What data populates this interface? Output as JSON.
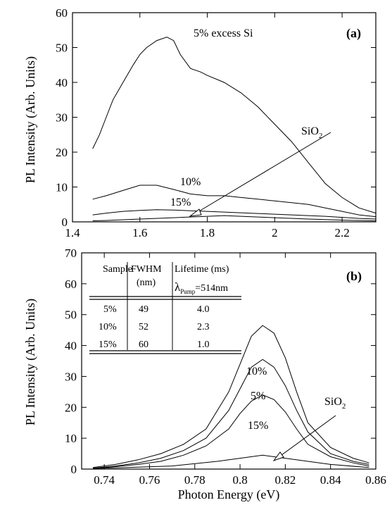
{
  "chart_data": [
    {
      "type": "line",
      "panel": "(a)",
      "xlabel": "",
      "ylabel": "PL Intensity (Arb. Units)",
      "xlim": [
        1.4,
        2.3
      ],
      "ylim": [
        0,
        60
      ],
      "x_ticks": [
        "1.4",
        "1.6",
        "1.8",
        "2",
        "2.2"
      ],
      "x_tick_values": [
        1.4,
        1.6,
        1.8,
        2.0,
        2.2
      ],
      "y_ticks": [
        "0",
        "10",
        "20",
        "30",
        "40",
        "50",
        "60"
      ],
      "y_tick_values": [
        0,
        10,
        20,
        30,
        40,
        50,
        60
      ],
      "series": [
        {
          "name": "5% excess Si",
          "x": [
            1.46,
            1.48,
            1.5,
            1.52,
            1.55,
            1.58,
            1.6,
            1.62,
            1.65,
            1.68,
            1.7,
            1.72,
            1.75,
            1.78,
            1.8,
            1.85,
            1.9,
            1.95,
            2.0,
            2.05,
            2.1,
            2.15,
            2.2,
            2.25,
            2.3
          ],
          "y": [
            21,
            25,
            30,
            35,
            40,
            45,
            48,
            50,
            52,
            53,
            52,
            48,
            44,
            43,
            42,
            40,
            37,
            33,
            28,
            23,
            17,
            11,
            7,
            4,
            2.5
          ]
        },
        {
          "name": "10%",
          "x": [
            1.46,
            1.5,
            1.55,
            1.6,
            1.65,
            1.7,
            1.75,
            1.8,
            1.85,
            1.9,
            1.95,
            2.0,
            2.05,
            2.1,
            2.15,
            2.2,
            2.25,
            2.3
          ],
          "y": [
            6.5,
            7.5,
            9,
            10.5,
            10.5,
            9.3,
            8,
            7.5,
            7.5,
            7,
            6.5,
            6,
            5.5,
            5,
            4,
            3,
            2,
            1.5
          ]
        },
        {
          "name": "15%",
          "x": [
            1.46,
            1.5,
            1.55,
            1.6,
            1.65,
            1.7,
            1.75,
            1.8,
            1.85,
            1.9,
            1.95,
            2.0,
            2.05,
            2.1,
            2.15,
            2.2,
            2.25,
            2.3
          ],
          "y": [
            2,
            2.5,
            3,
            3.3,
            3.5,
            3.4,
            3.2,
            3,
            2.8,
            2.6,
            2.4,
            2.2,
            2,
            1.8,
            1.6,
            1.3,
            1,
            0.8
          ]
        },
        {
          "name": "SiO2",
          "x": [
            1.46,
            1.5,
            1.6,
            1.7,
            1.8,
            1.85,
            1.9,
            2.0,
            2.1,
            2.2,
            2.3
          ],
          "y": [
            0.3,
            0.4,
            0.8,
            1.2,
            1.6,
            1.8,
            1.6,
            1.2,
            0.8,
            0.5,
            0.3
          ]
        }
      ],
      "annotations": [
        "5% excess Si",
        "10%",
        "15%",
        "SiO"
      ],
      "annotation_subscript": "2"
    },
    {
      "type": "line",
      "panel": "(b)",
      "xlabel": "Photon Energy (eV)",
      "ylabel": "PL Intensity (Arb. Units)",
      "xlim": [
        0.73,
        0.86
      ],
      "ylim": [
        0,
        70
      ],
      "x_ticks": [
        "0.74",
        "0.76",
        "0.78",
        "0.8",
        "0.82",
        "0.84",
        "0.86"
      ],
      "x_tick_values": [
        0.74,
        0.76,
        0.78,
        0.8,
        0.82,
        0.84,
        0.86
      ],
      "y_ticks": [
        "0",
        "10",
        "20",
        "30",
        "40",
        "50",
        "60",
        "70"
      ],
      "y_tick_values": [
        0,
        10,
        20,
        30,
        40,
        50,
        60,
        70
      ],
      "series": [
        {
          "name": "10%",
          "x": [
            0.735,
            0.745,
            0.755,
            0.765,
            0.775,
            0.785,
            0.795,
            0.8,
            0.805,
            0.81,
            0.815,
            0.82,
            0.825,
            0.83,
            0.84,
            0.85,
            0.857
          ],
          "y": [
            0.5,
            1.5,
            3,
            5,
            8,
            13,
            25,
            34,
            43,
            46.5,
            44,
            36,
            25,
            15,
            7,
            3.5,
            2
          ]
        },
        {
          "name": "5%",
          "x": [
            0.735,
            0.745,
            0.755,
            0.765,
            0.775,
            0.785,
            0.795,
            0.8,
            0.805,
            0.81,
            0.815,
            0.82,
            0.825,
            0.83,
            0.84,
            0.85,
            0.857
          ],
          "y": [
            0.3,
            1,
            2,
            3.5,
            6,
            10,
            19,
            26,
            33,
            35.5,
            33,
            27,
            19,
            12,
            5,
            2.5,
            1.5
          ]
        },
        {
          "name": "15%",
          "x": [
            0.735,
            0.745,
            0.755,
            0.765,
            0.775,
            0.785,
            0.795,
            0.8,
            0.805,
            0.81,
            0.815,
            0.82,
            0.825,
            0.83,
            0.84,
            0.85,
            0.857
          ],
          "y": [
            0.2,
            0.8,
            1.5,
            2.5,
            4.5,
            7.5,
            13,
            18,
            22,
            24,
            22.5,
            18.5,
            13,
            8,
            4,
            2,
            1
          ]
        },
        {
          "name": "SiO2",
          "x": [
            0.735,
            0.75,
            0.77,
            0.79,
            0.8,
            0.81,
            0.82,
            0.83,
            0.84,
            0.857
          ],
          "y": [
            0.2,
            0.5,
            1,
            2.5,
            3.5,
            4.5,
            3.5,
            2.5,
            1.5,
            0.5
          ]
        }
      ],
      "annotations": [
        "10%",
        "5%",
        "15%",
        "SiO"
      ],
      "annotation_subscript": "2",
      "table": {
        "headers": [
          "Sample",
          "FWHM",
          "Lifetime (ms)"
        ],
        "header_second_line": [
          "",
          "(nm)",
          ""
        ],
        "pump_symbol": "λ",
        "pump_subscript": "Pump",
        "pump_value": "=514nm",
        "rows": [
          [
            "5%",
            "49",
            "4.0"
          ],
          [
            "10%",
            "52",
            "2.3"
          ],
          [
            "15%",
            "60",
            "1.0"
          ]
        ]
      }
    }
  ]
}
